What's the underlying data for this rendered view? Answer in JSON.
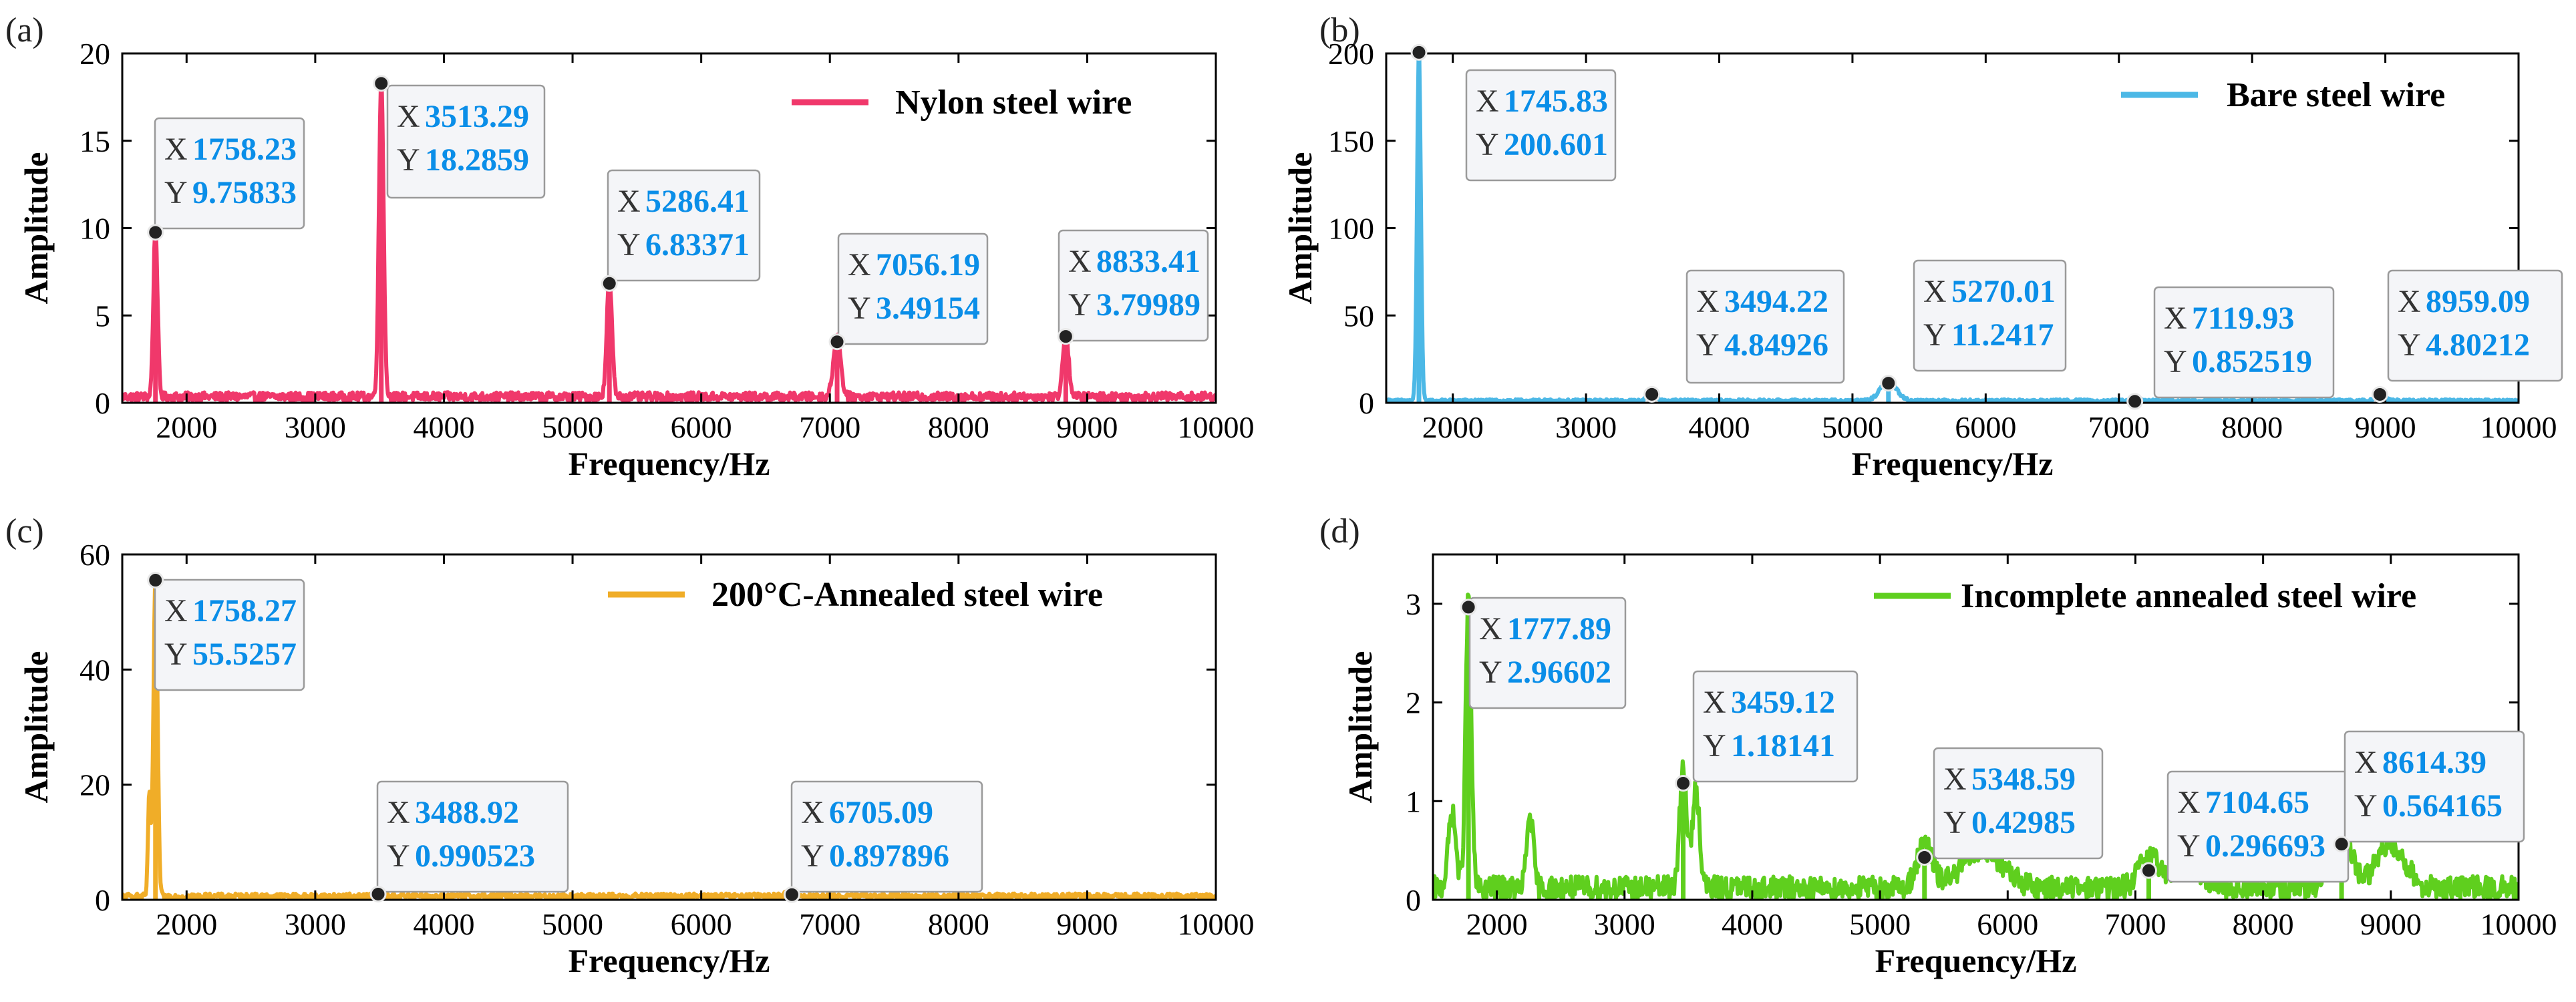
{
  "chart_data": [
    {
      "type": "line",
      "panel_label": "(a)",
      "title": "",
      "xlabel": "Frequency/Hz",
      "ylabel": "Amplitude",
      "xlim": [
        1500,
        10000
      ],
      "ylim": [
        0,
        20
      ],
      "xticks": [
        "2000",
        "3000",
        "4000",
        "5000",
        "6000",
        "7000",
        "8000",
        "9000",
        "10000"
      ],
      "yticks": [
        "0",
        "5",
        "10",
        "15",
        "20"
      ],
      "color": "#f0386b",
      "legend": {
        "label": "Nylon steel wire",
        "placement": "top-right"
      },
      "series": [
        {
          "name": "Nylon steel wire",
          "baseline": 0.35,
          "noise": 0.25,
          "peaks": [
            {
              "x": 1758.23,
              "y": 9.75833,
              "width": 16
            },
            {
              "x": 3513.29,
              "y": 18.2859,
              "width": 18
            },
            {
              "x": 5286.41,
              "y": 6.83371,
              "width": 20
            },
            {
              "x": 7056.19,
              "y": 3.49154,
              "width": 28
            },
            {
              "x": 8833.41,
              "y": 3.79989,
              "width": 22
            }
          ]
        }
      ],
      "datatips": [
        {
          "x_label": "X",
          "x": "1758.23",
          "y_label": "Y",
          "y": "9.75833"
        },
        {
          "x_label": "X",
          "x": "3513.29",
          "y_label": "Y",
          "y": "18.2859"
        },
        {
          "x_label": "X",
          "x": "5286.41",
          "y_label": "Y",
          "y": "6.83371"
        },
        {
          "x_label": "X",
          "x": "7056.19",
          "y_label": "Y",
          "y": "3.49154"
        },
        {
          "x_label": "X",
          "x": "8833.41",
          "y_label": "Y",
          "y": "3.79989"
        }
      ]
    },
    {
      "type": "line",
      "panel_label": "(b)",
      "title": "",
      "xlabel": "Frequency/Hz",
      "ylabel": "Amplitude",
      "xlim": [
        1500,
        10000
      ],
      "ylim": [
        0,
        200
      ],
      "xticks": [
        "2000",
        "3000",
        "4000",
        "5000",
        "6000",
        "7000",
        "8000",
        "9000",
        "10000"
      ],
      "yticks": [
        "0",
        "50",
        "100",
        "150",
        "200"
      ],
      "color": "#4cb8e6",
      "legend": {
        "label": "Bare steel wire",
        "placement": "top-right"
      },
      "series": [
        {
          "name": "Bare steel wire",
          "baseline": 1.2,
          "noise": 0.8,
          "peaks": [
            {
              "x": 1745.83,
              "y": 200.601,
              "width": 14
            },
            {
              "x": 3494.22,
              "y": 4.84926,
              "width": 30
            },
            {
              "x": 5270.01,
              "y": 11.2417,
              "width": 60
            },
            {
              "x": 7119.93,
              "y": 0.852519,
              "width": 30
            },
            {
              "x": 8959.09,
              "y": 4.80212,
              "width": 30
            }
          ]
        }
      ],
      "datatips": [
        {
          "x_label": "X",
          "x": "1745.83",
          "y_label": "Y",
          "y": "200.601"
        },
        {
          "x_label": "X",
          "x": "3494.22",
          "y_label": "Y",
          "y": "4.84926"
        },
        {
          "x_label": "X",
          "x": "5270.01",
          "y_label": "Y",
          "y": "11.2417"
        },
        {
          "x_label": "X",
          "x": "7119.93",
          "y_label": "Y",
          "y": "0.852519"
        },
        {
          "x_label": "X",
          "x": "8959.09",
          "y_label": "Y",
          "y": "4.80212"
        }
      ]
    },
    {
      "type": "line",
      "panel_label": "(c)",
      "title": "",
      "xlabel": "Frequency/Hz",
      "ylabel": "Amplitude",
      "xlim": [
        1500,
        10000
      ],
      "ylim": [
        0,
        60
      ],
      "xticks": [
        "2000",
        "3000",
        "4000",
        "5000",
        "6000",
        "7000",
        "8000",
        "9000",
        "10000"
      ],
      "yticks": [
        "0",
        "20",
        "40",
        "60"
      ],
      "color": "#f0ad28",
      "legend": {
        "label": "200°C-Annealed steel wire",
        "placement": "top-right"
      },
      "series": [
        {
          "name": "200°C-Annealed steel wire",
          "baseline": 0.6,
          "noise": 0.5,
          "peaks": [
            {
              "x": 1758.27,
              "y": 55.5257,
              "width": 16
            },
            {
              "x": 1710,
              "y": 18,
              "width": 10
            },
            {
              "x": 3488.92,
              "y": 0.990523,
              "width": 30
            },
            {
              "x": 6705.09,
              "y": 0.897896,
              "width": 40
            }
          ]
        }
      ],
      "datatips": [
        {
          "x_label": "X",
          "x": "1758.27",
          "y_label": "Y",
          "y": "55.5257"
        },
        {
          "x_label": "X",
          "x": "3488.92",
          "y_label": "Y",
          "y": "0.990523"
        },
        {
          "x_label": "X",
          "x": "6705.09",
          "y_label": "Y",
          "y": "0.897896"
        }
      ]
    },
    {
      "type": "line",
      "panel_label": "(d)",
      "title": "",
      "xlabel": "Frequency/Hz",
      "ylabel": "Amplitude",
      "xlim": [
        1500,
        10000
      ],
      "ylim": [
        0,
        3.5
      ],
      "xticks": [
        "2000",
        "3000",
        "4000",
        "5000",
        "6000",
        "7000",
        "8000",
        "9000",
        "10000"
      ],
      "yticks": [
        "0",
        "1",
        "2",
        "3"
      ],
      "color": "#5fcf1e",
      "legend": {
        "label": "Incomplete annealed steel wire",
        "placement": "top-right"
      },
      "series": [
        {
          "name": "Incomplete annealed steel wire",
          "baseline": 0.12,
          "noise": 0.12,
          "peaks": [
            {
              "x": 1777.89,
              "y": 2.96602,
              "width": 22
            },
            {
              "x": 1650,
              "y": 0.75,
              "width": 30
            },
            {
              "x": 2260,
              "y": 0.75,
              "width": 25
            },
            {
              "x": 3459.12,
              "y": 1.18141,
              "width": 28
            },
            {
              "x": 3560,
              "y": 1.0,
              "width": 28
            },
            {
              "x": 5348.59,
              "y": 0.42985,
              "width": 60
            },
            {
              "x": 5800,
              "y": 0.38,
              "width": 160
            },
            {
              "x": 7104.65,
              "y": 0.296693,
              "width": 80
            },
            {
              "x": 7400,
              "y": 0.25,
              "width": 120
            },
            {
              "x": 8614.39,
              "y": 0.564165,
              "width": 80
            },
            {
              "x": 9000,
              "y": 0.45,
              "width": 110
            }
          ]
        }
      ],
      "datatips": [
        {
          "x_label": "X",
          "x": "1777.89",
          "y_label": "Y",
          "y": "2.96602"
        },
        {
          "x_label": "X",
          "x": "3459.12",
          "y_label": "Y",
          "y": "1.18141"
        },
        {
          "x_label": "X",
          "x": "5348.59",
          "y_label": "Y",
          "y": "0.42985"
        },
        {
          "x_label": "X",
          "x": "7104.65",
          "y_label": "Y",
          "y": "0.296693"
        },
        {
          "x_label": "X",
          "x": "8614.39",
          "y_label": "Y",
          "y": "0.564165"
        }
      ]
    }
  ]
}
